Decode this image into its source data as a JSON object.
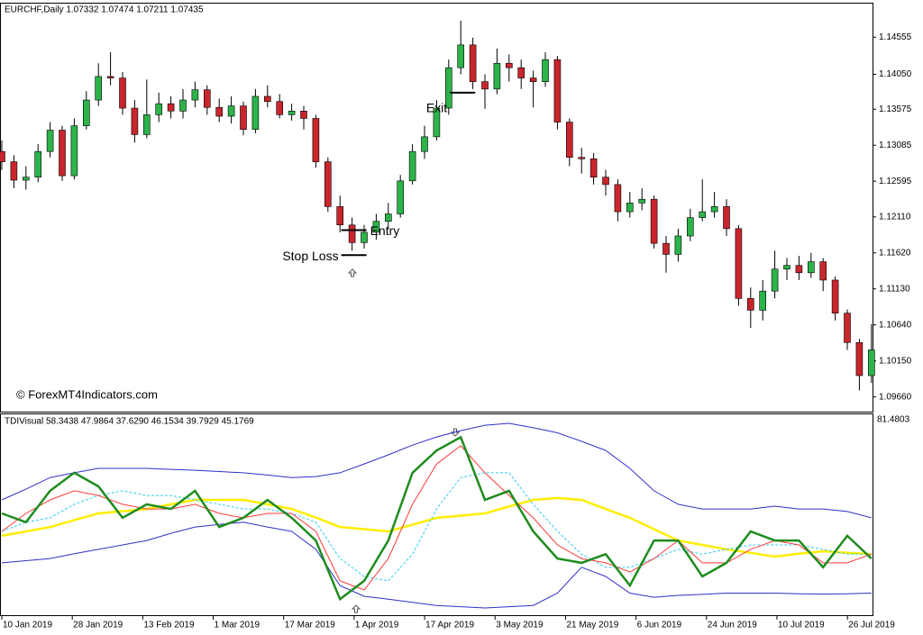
{
  "chart_data": [
    {
      "type": "candlestick",
      "title": "EURCHF,Daily  1.07332 1.07474 1.07211 1.07435",
      "watermark": "© ForexMT4Indicators.com",
      "categories": [
        "10 Jan 2019",
        null,
        null,
        null,
        null,
        null,
        "28 Jan 2019",
        null,
        null,
        null,
        null,
        null,
        "13 Feb 2019",
        null,
        null,
        null,
        null,
        null,
        "1 Mar 2019",
        null,
        null,
        null,
        null,
        null,
        "17 Mar 2019",
        null,
        null,
        null,
        null,
        null,
        "1 Apr 2019",
        null,
        null,
        null,
        null,
        null,
        "17 Apr 2019",
        null,
        null,
        null,
        null,
        null,
        "3 May 2019",
        null,
        null,
        null,
        null,
        null,
        "21 May 2019",
        null,
        null,
        null,
        null,
        null,
        "6 Jun 2019",
        null,
        null,
        null,
        null,
        null,
        "24 Jun 2019",
        null,
        null,
        null,
        null,
        null,
        "10 Jul 2019",
        null,
        null,
        null,
        null,
        null,
        "26 Jul 2019"
      ],
      "open": [
        1.13,
        1.1286,
        1.1261,
        1.1265,
        1.13,
        1.1329,
        1.1267,
        1.1335,
        1.137,
        1.1402,
        1.14,
        1.1359,
        1.1323,
        1.135,
        1.1365,
        1.1355,
        1.137,
        1.1384,
        1.136,
        1.1348,
        1.1362,
        1.133,
        1.1375,
        1.1368,
        1.135,
        1.1355,
        1.1345,
        1.1286,
        1.1225,
        1.12,
        1.1176,
        1.119,
        1.1205,
        1.1215,
        1.126,
        1.13,
        1.132,
        1.1359,
        1.1414,
        1.1445,
        1.1395,
        1.1385,
        1.142,
        1.1414,
        1.14,
        1.1395,
        1.1425,
        1.134,
        1.1292,
        1.129,
        1.1265,
        1.1255,
        1.1218,
        1.123,
        1.1235,
        1.1175,
        1.116,
        1.1185,
        1.121,
        1.1218,
        1.1225,
        1.1195,
        1.11,
        1.1084,
        1.111,
        1.114,
        1.1145,
        1.1135,
        1.115,
        1.1125,
        1.108,
        1.104,
        1.0995
      ],
      "high": [
        1.1315,
        1.1295,
        1.128,
        1.131,
        1.134,
        1.1335,
        1.1345,
        1.1382,
        1.142,
        1.1435,
        1.1408,
        1.137,
        1.1398,
        1.138,
        1.1375,
        1.1385,
        1.1395,
        1.139,
        1.1372,
        1.1375,
        1.1368,
        1.1385,
        1.139,
        1.1378,
        1.1365,
        1.1362,
        1.135,
        1.1292,
        1.124,
        1.121,
        1.12,
        1.1215,
        1.123,
        1.1268,
        1.131,
        1.1335,
        1.137,
        1.1425,
        1.1478,
        1.1455,
        1.1405,
        1.144,
        1.1432,
        1.1425,
        1.141,
        1.1435,
        1.143,
        1.1345,
        1.1305,
        1.1298,
        1.1275,
        1.1262,
        1.1245,
        1.125,
        1.124,
        1.1185,
        1.1195,
        1.1222,
        1.1262,
        1.1245,
        1.1235,
        1.12,
        1.1115,
        1.1125,
        1.1165,
        1.1155,
        1.1158,
        1.1162,
        1.1155,
        1.113,
        1.1085,
        1.1045,
        1.1065
      ],
      "low": [
        1.1275,
        1.125,
        1.1248,
        1.1258,
        1.1292,
        1.126,
        1.1262,
        1.133,
        1.1362,
        1.139,
        1.135,
        1.1312,
        1.1318,
        1.134,
        1.1345,
        1.1345,
        1.136,
        1.135,
        1.134,
        1.1338,
        1.1322,
        1.1325,
        1.136,
        1.1345,
        1.1342,
        1.133,
        1.1278,
        1.1218,
        1.119,
        1.1165,
        1.1168,
        1.118,
        1.1195,
        1.121,
        1.1255,
        1.129,
        1.1315,
        1.135,
        1.1405,
        1.1385,
        1.1358,
        1.1378,
        1.1395,
        1.1385,
        1.136,
        1.1388,
        1.133,
        1.128,
        1.127,
        1.1255,
        1.124,
        1.1205,
        1.121,
        1.122,
        1.1168,
        1.1135,
        1.115,
        1.1178,
        1.1205,
        1.121,
        1.1185,
        1.109,
        1.106,
        1.107,
        1.11,
        1.1125,
        1.1125,
        1.1128,
        1.111,
        1.107,
        1.103,
        1.0975,
        1.0985
      ],
      "close": [
        1.1286,
        1.1261,
        1.1265,
        1.13,
        1.1329,
        1.1267,
        1.1335,
        1.137,
        1.1402,
        1.14,
        1.1359,
        1.1323,
        1.135,
        1.1365,
        1.1355,
        1.137,
        1.1384,
        1.136,
        1.1348,
        1.1362,
        1.133,
        1.1375,
        1.1368,
        1.135,
        1.1355,
        1.1345,
        1.1286,
        1.1225,
        1.12,
        1.1176,
        1.119,
        1.1205,
        1.1215,
        1.126,
        1.13,
        1.132,
        1.1359,
        1.1414,
        1.1445,
        1.1395,
        1.1385,
        1.142,
        1.1414,
        1.14,
        1.1395,
        1.1425,
        1.134,
        1.1292,
        1.129,
        1.1265,
        1.1255,
        1.1218,
        1.123,
        1.1235,
        1.1175,
        1.116,
        1.1185,
        1.121,
        1.1218,
        1.1225,
        1.1195,
        1.11,
        1.1084,
        1.111,
        1.114,
        1.1145,
        1.1135,
        1.115,
        1.1125,
        1.108,
        1.104,
        1.0995,
        1.103
      ],
      "up_color": "#2cb34a",
      "down_color": "#c8262c",
      "ylim": [
        1.0946,
        1.15
      ],
      "yticks": [
        1.14555,
        {
          "value": 1.1405,
          "label": "1.14050"
        },
        1.13575,
        1.13085,
        1.12595,
        {
          "value": 1.1211,
          "label": "1.12110"
        },
        {
          "value": 1.1162,
          "label": "1.11620"
        },
        {
          "value": 1.1113,
          "label": "1.11130"
        },
        {
          "value": 1.1064,
          "label": "1.10640"
        },
        {
          "value": 1.1015,
          "label": "1.10150"
        },
        {
          "value": 1.0966,
          "label": "1.09660"
        }
      ],
      "annotations": [
        {
          "text": "Entry",
          "value": 1.1193,
          "index": 29
        },
        {
          "text": "Stop Loss",
          "value": 1.1159,
          "index": 29
        },
        {
          "text": "Exit",
          "value": 1.138,
          "index": 38
        }
      ]
    },
    {
      "type": "line",
      "title": "TDIVisual 58.3438 47.9864 37.6290 46.1534 39.7929 45.1769",
      "x": [
        0,
        2,
        4,
        6,
        8,
        10,
        12,
        14,
        16,
        18,
        20,
        22,
        24,
        26,
        28,
        30,
        32,
        34,
        36,
        38,
        40,
        42,
        44,
        46,
        48,
        50,
        52,
        54,
        56,
        58,
        60,
        62,
        64,
        66,
        68,
        70,
        72
      ],
      "ylim": [
        18,
        81.4803
      ],
      "yticks": [
        81.4803
      ],
      "series": [
        {
          "color": "#3030c8",
          "values": [
            54.6,
            58.0,
            61.7,
            63.2,
            64.6,
            64.6,
            64.6,
            64.3,
            64.0,
            63.6,
            63.2,
            62.5,
            61.7,
            62.0,
            63.2,
            66.0,
            68.9,
            72.0,
            74.6,
            76.6,
            78.3,
            78.9,
            77.5,
            75.9,
            73.2,
            70.3,
            64.6,
            57.5,
            53.2,
            51.7,
            51.7,
            51.7,
            52.6,
            51.7,
            51.7,
            50.9,
            48.9
          ]
        },
        {
          "color": "#3030c8",
          "values": [
            34.6,
            35.3,
            36.0,
            37.5,
            38.9,
            40.3,
            41.7,
            44.0,
            46.0,
            46.8,
            47.5,
            46.0,
            44.6,
            38.9,
            27.4,
            24.0,
            23.1,
            22.1,
            21.1,
            20.7,
            20.3,
            20.7,
            21.1,
            25.0,
            33.2,
            30.3,
            25.0,
            23.7,
            24.3,
            24.6,
            25.0,
            25.0,
            25.0,
            24.8,
            24.7,
            24.8,
            25.0
          ]
        },
        {
          "color": "#ffee00",
          "values": [
            43.2,
            44.6,
            46.0,
            48.2,
            50.3,
            51.0,
            51.7,
            53.2,
            54.6,
            54.6,
            54.6,
            53.2,
            51.7,
            49.0,
            46.0,
            45.3,
            44.6,
            46.7,
            48.9,
            49.6,
            50.3,
            52.5,
            54.6,
            55.2,
            54.6,
            51.7,
            48.9,
            45.3,
            41.7,
            40.3,
            38.9,
            37.8,
            36.6,
            37.5,
            38.3,
            37.8,
            37.4
          ]
        },
        {
          "color": "#33ccee",
          "dashed": true,
          "values": [
            44.6,
            47.5,
            48.9,
            53.2,
            56.0,
            57.5,
            56.0,
            56.0,
            54.6,
            53.2,
            51.7,
            51.7,
            50.3,
            47.5,
            36.0,
            30.3,
            28.9,
            37.4,
            51.7,
            61.7,
            63.2,
            63.2,
            53.2,
            44.6,
            37.4,
            33.2,
            33.2,
            36.0,
            38.9,
            37.4,
            38.9,
            40.3,
            40.3,
            40.3,
            38.9,
            37.4,
            37.4
          ]
        },
        {
          "color": "#ff3a3a",
          "values": [
            44.6,
            50.3,
            54.6,
            57.5,
            56.0,
            53.2,
            51.7,
            51.7,
            53.2,
            50.3,
            48.9,
            50.3,
            50.3,
            44.6,
            28.9,
            26.0,
            36.0,
            53.2,
            66.0,
            71.8,
            63.2,
            56.0,
            48.9,
            40.3,
            36.0,
            34.6,
            31.7,
            36.0,
            41.7,
            34.6,
            34.6,
            38.9,
            41.7,
            40.3,
            34.6,
            34.6,
            37.4
          ]
        },
        {
          "color": "#1e8c1e",
          "values": [
            50.3,
            47.5,
            57.5,
            63.2,
            58.9,
            48.9,
            53.2,
            51.7,
            57.5,
            46.0,
            48.9,
            54.6,
            48.9,
            41.7,
            23.1,
            28.9,
            41.7,
            63.2,
            70.3,
            74.5,
            54.6,
            57.5,
            44.6,
            36.0,
            34.6,
            37.4,
            27.4,
            41.7,
            41.7,
            30.3,
            34.6,
            44.6,
            41.7,
            41.7,
            33.2,
            43.2,
            36.0
          ]
        }
      ]
    }
  ]
}
